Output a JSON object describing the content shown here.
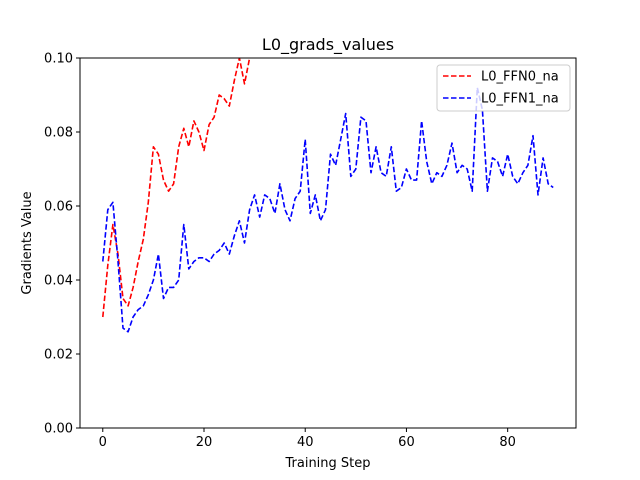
{
  "chart_data": {
    "type": "line",
    "title": "L0_grads_values",
    "xlabel": "Training Step",
    "ylabel": "Gradients Value",
    "xlim": [
      -4.5,
      93.5
    ],
    "ylim": [
      0.0,
      0.1
    ],
    "xticks": [
      0,
      20,
      40,
      60,
      80
    ],
    "yticks": [
      0.0,
      0.02,
      0.04,
      0.06,
      0.08,
      0.1
    ],
    "xtick_labels": [
      "0",
      "20",
      "40",
      "60",
      "80"
    ],
    "ytick_labels": [
      "0.00",
      "0.02",
      "0.04",
      "0.06",
      "0.08",
      "0.10"
    ],
    "grid": false,
    "legend_position": "top-right",
    "series": [
      {
        "name": "L0_FFN0_na",
        "color": "#ff0000",
        "style": "dashed",
        "x": [
          0,
          1,
          2,
          3,
          4,
          5,
          6,
          7,
          8,
          9,
          10,
          11,
          12,
          13,
          14,
          15,
          16,
          17,
          18,
          19,
          20,
          21,
          22,
          23,
          24,
          25,
          26,
          27,
          28,
          29
        ],
        "values": [
          0.03,
          0.044,
          0.055,
          0.047,
          0.035,
          0.033,
          0.038,
          0.045,
          0.051,
          0.061,
          0.076,
          0.074,
          0.067,
          0.064,
          0.066,
          0.076,
          0.081,
          0.076,
          0.083,
          0.08,
          0.075,
          0.082,
          0.084,
          0.09,
          0.089,
          0.087,
          0.094,
          0.1,
          0.093,
          0.1
        ]
      },
      {
        "name": "L0_FFN1_na",
        "color": "#0000ff",
        "style": "dashed",
        "x": [
          0,
          1,
          2,
          3,
          4,
          5,
          6,
          7,
          8,
          9,
          10,
          11,
          12,
          13,
          14,
          15,
          16,
          17,
          18,
          19,
          20,
          21,
          22,
          23,
          24,
          25,
          26,
          27,
          28,
          29,
          30,
          31,
          32,
          33,
          34,
          35,
          36,
          37,
          38,
          39,
          40,
          41,
          42,
          43,
          44,
          45,
          46,
          47,
          48,
          49,
          50,
          51,
          52,
          53,
          54,
          55,
          56,
          57,
          58,
          59,
          60,
          61,
          62,
          63,
          64,
          65,
          66,
          67,
          68,
          69,
          70,
          71,
          72,
          73,
          74,
          75,
          76,
          77,
          78,
          79,
          80,
          81,
          82,
          83,
          84,
          85,
          86,
          87,
          88,
          89
        ],
        "values": [
          0.045,
          0.059,
          0.061,
          0.045,
          0.027,
          0.026,
          0.03,
          0.032,
          0.033,
          0.036,
          0.04,
          0.047,
          0.035,
          0.038,
          0.038,
          0.04,
          0.055,
          0.043,
          0.045,
          0.046,
          0.046,
          0.045,
          0.047,
          0.048,
          0.05,
          0.047,
          0.052,
          0.056,
          0.05,
          0.059,
          0.063,
          0.057,
          0.063,
          0.062,
          0.058,
          0.066,
          0.059,
          0.056,
          0.062,
          0.064,
          0.078,
          0.058,
          0.063,
          0.056,
          0.059,
          0.074,
          0.071,
          0.078,
          0.085,
          0.068,
          0.07,
          0.084,
          0.083,
          0.069,
          0.076,
          0.069,
          0.068,
          0.076,
          0.064,
          0.065,
          0.07,
          0.067,
          0.067,
          0.083,
          0.072,
          0.066,
          0.069,
          0.068,
          0.071,
          0.077,
          0.069,
          0.071,
          0.07,
          0.064,
          0.092,
          0.086,
          0.064,
          0.073,
          0.072,
          0.068,
          0.074,
          0.068,
          0.066,
          0.069,
          0.071,
          0.079,
          0.063,
          0.073,
          0.066,
          0.065
        ]
      }
    ]
  }
}
